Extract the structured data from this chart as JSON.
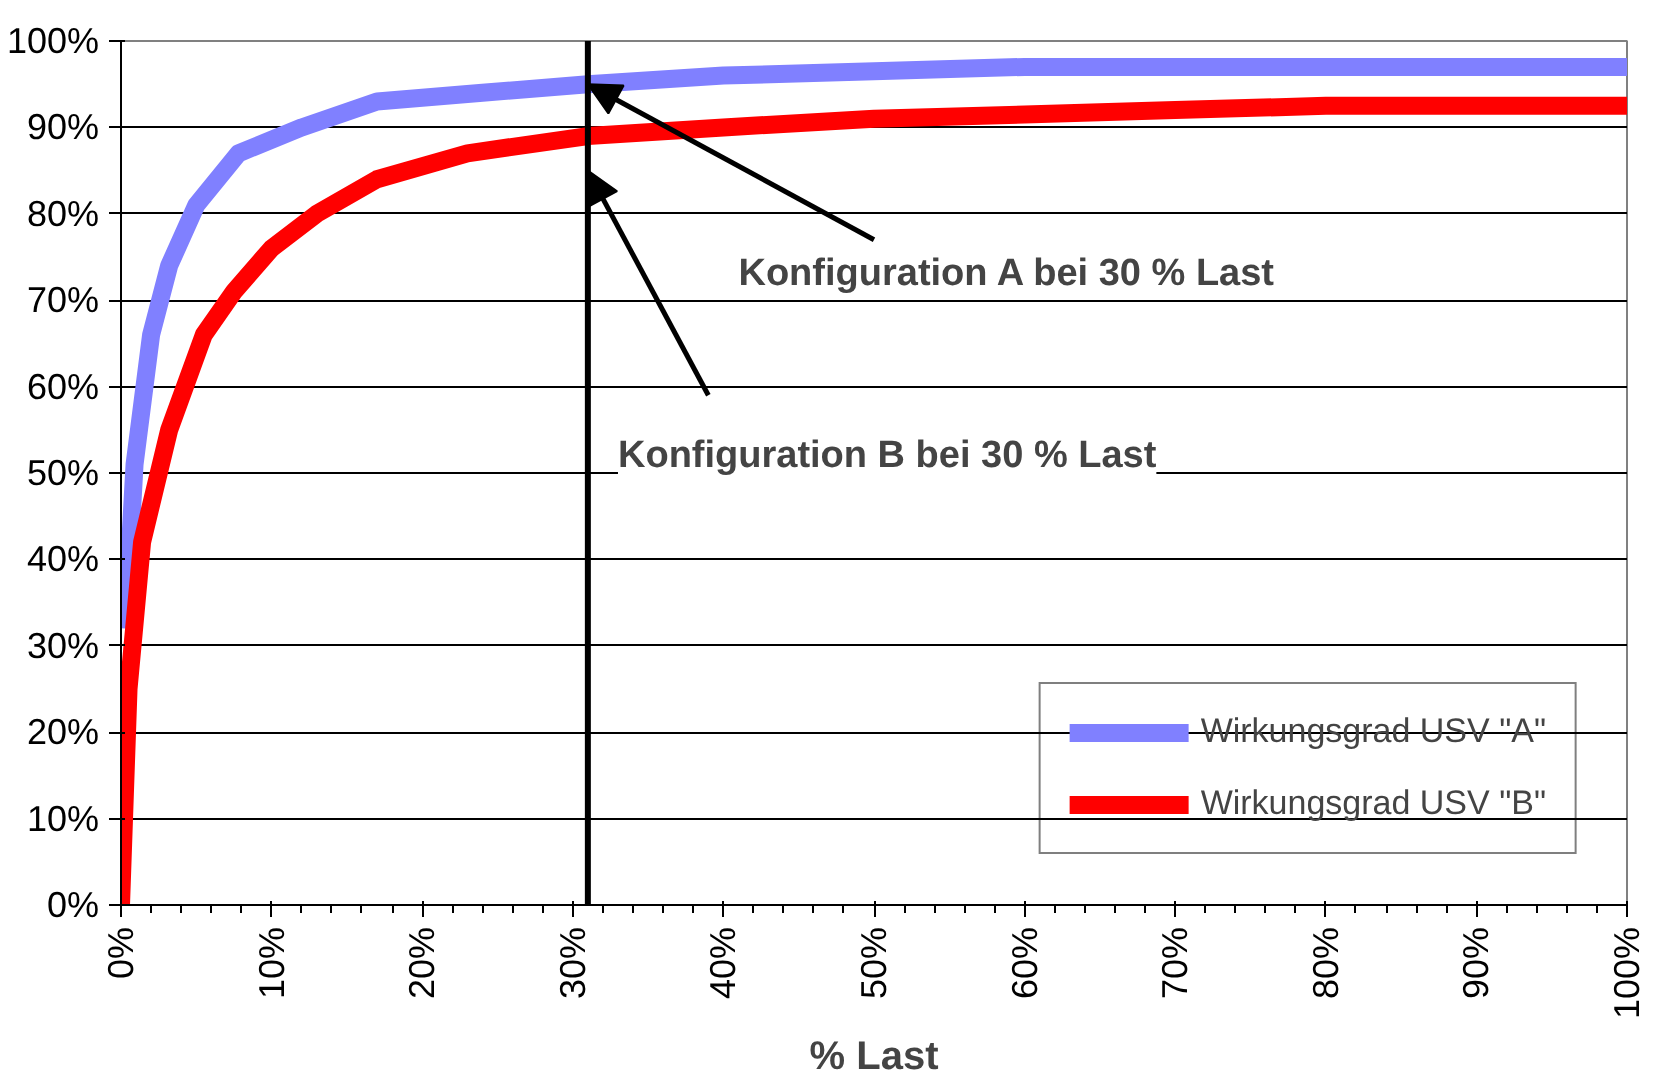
{
  "chart_data": {
    "type": "line",
    "xlabel": "% Last",
    "xlim": [
      0,
      100
    ],
    "ylim": [
      0,
      100
    ],
    "xticks": [
      {
        "value": 0,
        "label": "0%"
      },
      {
        "value": 10,
        "label": "10%"
      },
      {
        "value": 20,
        "label": "20%"
      },
      {
        "value": 30,
        "label": "30%"
      },
      {
        "value": 40,
        "label": "40%"
      },
      {
        "value": 50,
        "label": "50%"
      },
      {
        "value": 60,
        "label": "60%"
      },
      {
        "value": 70,
        "label": "70%"
      },
      {
        "value": 80,
        "label": "80%"
      },
      {
        "value": 90,
        "label": "90%"
      },
      {
        "value": 100,
        "label": "100%"
      }
    ],
    "yticks": [
      {
        "value": 0,
        "label": "0%"
      },
      {
        "value": 10,
        "label": "10%"
      },
      {
        "value": 20,
        "label": "20%"
      },
      {
        "value": 30,
        "label": "30%"
      },
      {
        "value": 40,
        "label": "40%"
      },
      {
        "value": 50,
        "label": "50%"
      },
      {
        "value": 60,
        "label": "60%"
      },
      {
        "value": 70,
        "label": "70%"
      },
      {
        "value": 80,
        "label": "80%"
      },
      {
        "value": 90,
        "label": "90%"
      },
      {
        "value": 100,
        "label": "100%"
      }
    ],
    "grid": "y",
    "legend": "bottom right",
    "marker": "none",
    "line_style": "solid",
    "series": [
      {
        "name": "Wirkungsgrad USV \"A\"",
        "color": "#8080ff",
        "x": [
          0.3,
          0.9,
          2,
          3.2,
          5,
          7.8,
          12,
          17,
          24,
          31,
          40,
          50,
          60,
          70,
          80,
          90,
          100
        ],
        "values": [
          32,
          51,
          66,
          74,
          81,
          87,
          90,
          93,
          94,
          95,
          96,
          96.5,
          97,
          97,
          97,
          97,
          97
        ]
      },
      {
        "name": "Wirkungsgrad USV \"B\"",
        "color": "#ff0000",
        "x": [
          0,
          0.5,
          1.4,
          3.2,
          5.5,
          7.5,
          10,
          13,
          17,
          23,
          31,
          40,
          50,
          60,
          70,
          80,
          90,
          100
        ],
        "values": [
          0,
          25,
          42,
          55,
          66,
          71,
          76,
          80,
          84,
          87,
          89,
          90,
          91,
          91.5,
          92,
          92.5,
          92.5,
          92.5
        ]
      }
    ],
    "ref_lines": [
      {
        "axis": "x",
        "value": 31,
        "color": "#000000"
      }
    ],
    "annotations": [
      {
        "text": "Konfiguration A bei 30 % Last",
        "x": 31,
        "y": 95
      },
      {
        "text": "Konfiguration B bei 30 % Last",
        "x": 31,
        "y": 85
      }
    ]
  }
}
